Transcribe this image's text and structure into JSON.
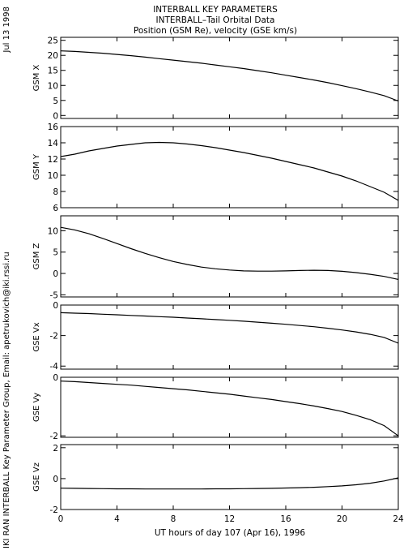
{
  "header": {
    "title_line1": "INTERBALL KEY PARAMETERS",
    "title_line2": "INTERBALL–Tail Orbital Data",
    "title_line3": "Position (GSM Re), velocity (GSE km/s)"
  },
  "side_text": {
    "date": "Jul 13 1998",
    "credit": "IKI RAN INTERBALL Key Parameter Group, Email: apetrukovich@iki.rssi.ru"
  },
  "chart_data": {
    "type": "line",
    "xlabel": "UT hours of day 107 (Apr 16), 1996",
    "xlim": [
      0,
      24
    ],
    "xticks": [
      0,
      4,
      8,
      12,
      16,
      20,
      24
    ],
    "x": [
      0,
      1,
      2,
      3,
      4,
      5,
      6,
      7,
      8,
      9,
      10,
      11,
      12,
      13,
      14,
      15,
      16,
      17,
      18,
      19,
      20,
      21,
      22,
      23,
      24
    ],
    "panels": [
      {
        "ylabel": "GSM X",
        "ylim": [
          -1,
          26
        ],
        "yticks": [
          0,
          5,
          10,
          15,
          20,
          25
        ],
        "values": [
          21.5,
          21.3,
          21.0,
          20.7,
          20.3,
          19.9,
          19.4,
          18.9,
          18.4,
          17.9,
          17.4,
          16.8,
          16.2,
          15.6,
          14.9,
          14.2,
          13.4,
          12.6,
          11.8,
          10.9,
          9.9,
          8.9,
          7.8,
          6.6,
          4.8
        ]
      },
      {
        "ylabel": "GSM Y",
        "ylim": [
          6,
          16
        ],
        "yticks": [
          6,
          8,
          10,
          12,
          14,
          16
        ],
        "values": [
          12.3,
          12.6,
          13.0,
          13.3,
          13.6,
          13.8,
          14.0,
          14.05,
          14.0,
          13.85,
          13.65,
          13.4,
          13.1,
          12.8,
          12.45,
          12.1,
          11.7,
          11.3,
          10.9,
          10.4,
          9.9,
          9.3,
          8.6,
          7.9,
          6.9
        ]
      },
      {
        "ylabel": "GSM Z",
        "ylim": [
          -5.5,
          13.5
        ],
        "yticks": [
          -5,
          0,
          5,
          10
        ],
        "values": [
          10.8,
          10.2,
          9.3,
          8.2,
          7.0,
          5.8,
          4.7,
          3.7,
          2.8,
          2.1,
          1.5,
          1.1,
          0.8,
          0.6,
          0.55,
          0.55,
          0.6,
          0.7,
          0.75,
          0.7,
          0.5,
          0.2,
          -0.2,
          -0.7,
          -1.4
        ]
      },
      {
        "ylabel": "GSE Vx",
        "ylim": [
          -4.2,
          0
        ],
        "yticks": [
          -4,
          -2,
          0
        ],
        "values": [
          -0.5,
          -0.53,
          -0.56,
          -0.6,
          -0.64,
          -0.68,
          -0.72,
          -0.76,
          -0.8,
          -0.85,
          -0.9,
          -0.95,
          -1.0,
          -1.06,
          -1.12,
          -1.19,
          -1.26,
          -1.34,
          -1.42,
          -1.52,
          -1.63,
          -1.76,
          -1.92,
          -2.12,
          -2.5
        ]
      },
      {
        "ylabel": "GSE Vy",
        "ylim": [
          -2.05,
          0
        ],
        "yticks": [
          -2,
          0
        ],
        "values": [
          -0.13,
          -0.15,
          -0.18,
          -0.21,
          -0.24,
          -0.27,
          -0.31,
          -0.35,
          -0.39,
          -0.43,
          -0.48,
          -0.53,
          -0.58,
          -0.64,
          -0.7,
          -0.76,
          -0.83,
          -0.9,
          -0.98,
          -1.07,
          -1.17,
          -1.3,
          -1.45,
          -1.65,
          -2.0
        ]
      },
      {
        "ylabel": "GSE Vz",
        "ylim": [
          -2,
          2.2
        ],
        "yticks": [
          -2,
          0,
          2
        ],
        "values": [
          -0.62,
          -0.63,
          -0.64,
          -0.65,
          -0.66,
          -0.66,
          -0.67,
          -0.67,
          -0.67,
          -0.67,
          -0.67,
          -0.66,
          -0.66,
          -0.65,
          -0.64,
          -0.63,
          -0.61,
          -0.59,
          -0.56,
          -0.52,
          -0.47,
          -0.4,
          -0.3,
          -0.15,
          0.05
        ]
      }
    ]
  }
}
